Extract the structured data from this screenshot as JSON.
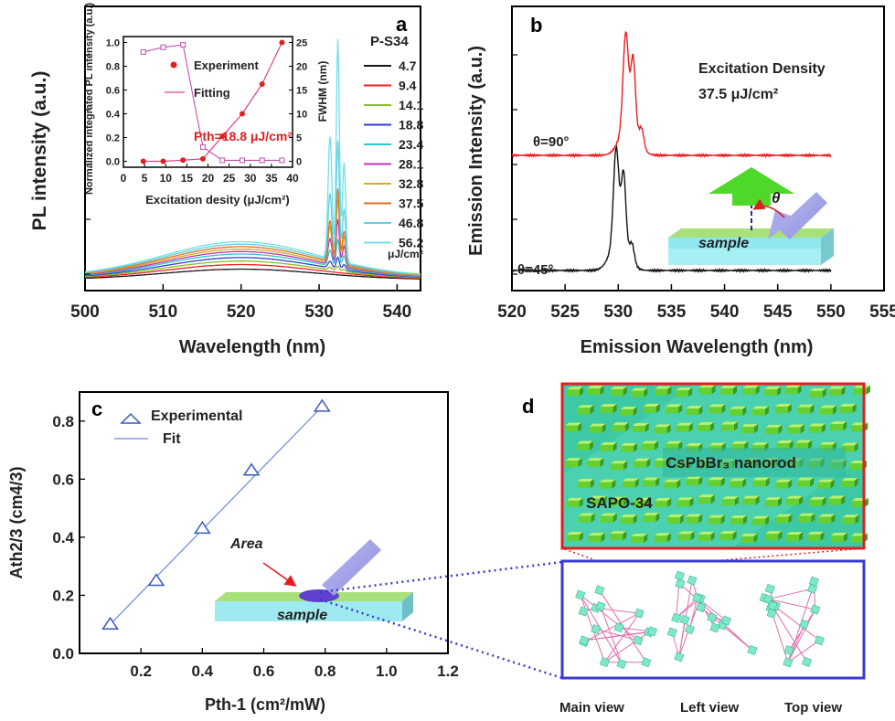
{
  "panels": {
    "a": {
      "letter": "a",
      "ylabel": "PL intensity (a.u.)",
      "xlabel": "Wavelength (nm)",
      "legend_title": "P-S34",
      "legend_unit": "μJ/cm²",
      "inset_left_label": "Normalized integrated PL intensity (a.u.)",
      "inset_right_label": "FWHM (nm)",
      "inset_xlabel": "Excitation desity (μJ/cm²)",
      "inset_legend_experiment": "Experiment",
      "inset_legend_fitting": "Fitting",
      "inset_annotation": "Pth=18.8 μJ/cm²"
    },
    "b": {
      "letter": "b",
      "ylabel": "Emission Intensity (a.u.)",
      "xlabel": "Emission Wavelength (nm)",
      "annotation_line1": "Excitation Density",
      "annotation_line2": "37.5 μJ/cm²",
      "label_90": "θ=90°",
      "label_45": "θ=45°",
      "angle_symbol": "θ",
      "sample_label": "sample"
    },
    "c": {
      "letter": "c",
      "ylabel": "Ath2/3 (cm4/3)",
      "xlabel": "Pth-1 (cm²/mW)",
      "legend_experimental": "Experimental",
      "legend_fit": "Fit",
      "area_label": "Area",
      "sample_label": "sample"
    },
    "d": {
      "letter": "d",
      "nanorod_label": "CsPbBr₃ nanorod",
      "sapo_label": "SAPO-34",
      "views": [
        "Main view",
        "Left view",
        "Top view"
      ]
    }
  },
  "chart_data": [
    {
      "panel": "a",
      "type": "line",
      "title": "",
      "xlabel": "Wavelength (nm)",
      "ylabel": "PL intensity (a.u.)",
      "xlim": [
        500,
        543
      ],
      "xticks": [
        500,
        510,
        520,
        530,
        540
      ],
      "legend_title": "P-S34",
      "series": [
        {
          "name": "4.7",
          "color": "#1a1a1a",
          "broad": 0.1,
          "peak": 0.0
        },
        {
          "name": "9.4",
          "color": "#ee2020",
          "broad": 0.14,
          "peak": 0.0
        },
        {
          "name": "14.1",
          "color": "#88c020",
          "broad": 0.17,
          "peak": 0.02
        },
        {
          "name": "18.8",
          "color": "#3040d0",
          "broad": 0.2,
          "peak": 0.05
        },
        {
          "name": "23.4",
          "color": "#30c8c8",
          "broad": 0.23,
          "peak": 0.12
        },
        {
          "name": "28.1",
          "color": "#c030c0",
          "broad": 0.25,
          "peak": 0.2
        },
        {
          "name": "32.8",
          "color": "#d0b020",
          "broad": 0.27,
          "peak": 0.28
        },
        {
          "name": "37.5",
          "color": "#e07020",
          "broad": 0.29,
          "peak": 0.32
        },
        {
          "name": "46.8",
          "color": "#60d0e0",
          "broad": 0.31,
          "peak": 0.52
        },
        {
          "name": "56.2",
          "color": "#70e0e8",
          "broad": 0.33,
          "peak": 0.95
        }
      ]
    },
    {
      "panel": "a-inset",
      "type": "scatter",
      "xlabel": "Excitation desity (μJ/cm²)",
      "ylabel_left": "Normalized integrated PL intensity (a.u.)",
      "ylabel_right": "FWHM (nm)",
      "xlim": [
        0,
        40
      ],
      "xticks": [
        0,
        5,
        10,
        15,
        20,
        25,
        30,
        35,
        40
      ],
      "ylim_left": [
        -0.05,
        1.05
      ],
      "yticks_left": [
        0.0,
        0.2,
        0.4,
        0.6,
        0.8,
        1.0
      ],
      "ylim_right": [
        -1.25,
        26.25
      ],
      "yticks_right": [
        0,
        5,
        10,
        15,
        20,
        25
      ],
      "experiment": {
        "x": [
          4.7,
          9.4,
          14.1,
          18.8,
          23.4,
          28.1,
          32.8,
          37.5
        ],
        "y": [
          0.0,
          0.0,
          0.01,
          0.02,
          0.21,
          0.4,
          0.65,
          1.0
        ]
      },
      "fwhm": {
        "x": [
          4.7,
          9.4,
          14.1,
          18.8,
          23.4,
          28.1,
          32.8,
          37.5
        ],
        "y": [
          23,
          24,
          24.5,
          3,
          0.2,
          0.2,
          0.2,
          0.2
        ]
      },
      "threshold": 18.8
    },
    {
      "panel": "b",
      "type": "line",
      "xlabel": "Emission Wavelength (nm)",
      "ylabel": "Emission Intensity (a.u.)",
      "xlim": [
        520,
        555
      ],
      "xticks": [
        520,
        525,
        530,
        535,
        540,
        545,
        550,
        555
      ],
      "series": [
        {
          "name": "θ=90°",
          "color": "#ee1c1c",
          "peak_center": 531.0
        },
        {
          "name": "θ=45°",
          "color": "#111111",
          "peak_center": 530.1
        }
      ]
    },
    {
      "panel": "c",
      "type": "scatter",
      "xlabel": "Pth-1 (cm²/mW)",
      "ylabel": "Ath2/3 (cm4/3)",
      "xlim": [
        0,
        1.2
      ],
      "xticks": [
        0.2,
        0.4,
        0.6,
        0.8,
        1.0,
        1.2
      ],
      "ylim": [
        0,
        0.9
      ],
      "yticks": [
        0.0,
        0.2,
        0.4,
        0.6,
        0.8
      ],
      "experimental": {
        "x": [
          0.1,
          0.25,
          0.4,
          0.56,
          0.79
        ],
        "y": [
          0.1,
          0.25,
          0.43,
          0.63,
          0.85
        ]
      },
      "fit": {
        "x": [
          0.1,
          0.79
        ],
        "y": [
          0.1,
          0.85
        ]
      }
    }
  ]
}
